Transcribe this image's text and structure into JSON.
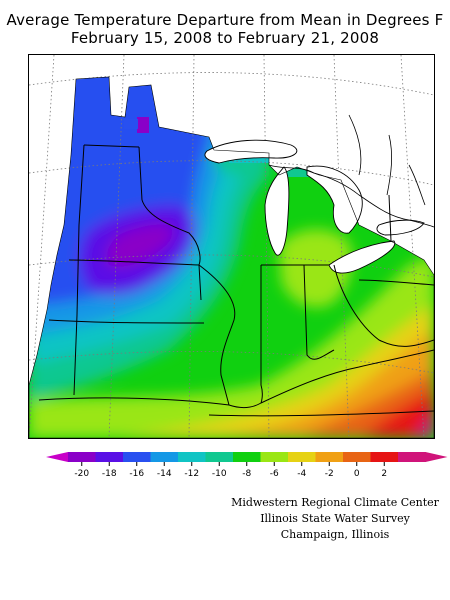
{
  "title": {
    "line1": "Average Temperature Departure from Mean in Degrees F",
    "line2": "February 15, 2008 to February 21, 2008"
  },
  "legend": {
    "tick_labels": [
      "-20",
      "-18",
      "-16",
      "-14",
      "-12",
      "-10",
      "-8",
      "-6",
      "-4",
      "-2",
      "0",
      "2"
    ],
    "colors": [
      "#8a00c8",
      "#5a10e6",
      "#2850f0",
      "#1498e6",
      "#10c4c4",
      "#10c890",
      "#10d010",
      "#9ae614",
      "#e6d214",
      "#f0a014",
      "#e86414",
      "#e61414",
      "#d0147a"
    ],
    "under_color": "#c800c8",
    "over_color": "#d0147a"
  },
  "credits": {
    "line1": "Midwestern Regional Climate Center",
    "line2": "Illinois State Water Survey",
    "line3": "Champaign, Illinois"
  }
}
